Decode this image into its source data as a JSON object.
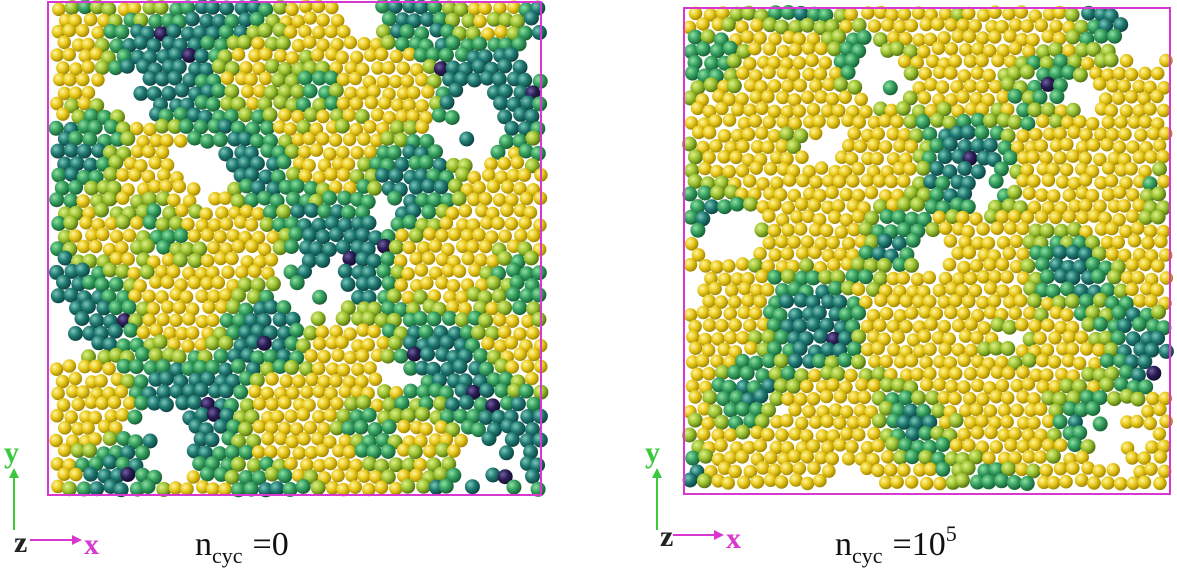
{
  "panels": [
    {
      "axes": {
        "y": "y",
        "z": "z",
        "x": "x"
      },
      "label": {
        "base": "n",
        "sub": "cyc",
        "value": "=0",
        "sup": ""
      }
    },
    {
      "axes": {
        "y": "y",
        "z": "z",
        "x": "x"
      },
      "label": {
        "base": "n",
        "sub": "cyc",
        "value": "=10",
        "sup": "5"
      }
    }
  ]
}
